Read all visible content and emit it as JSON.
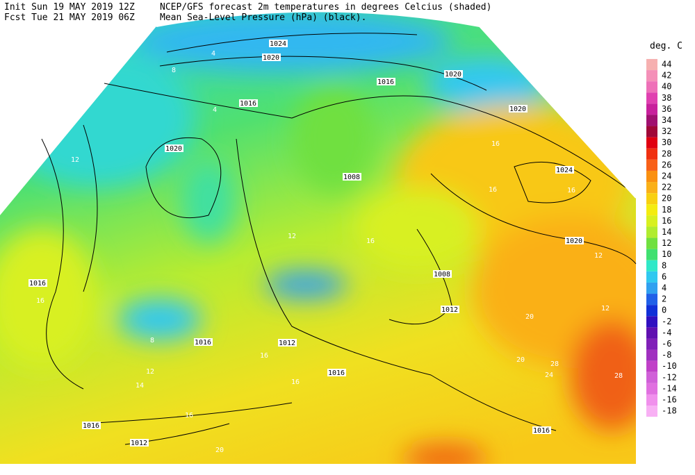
{
  "header": {
    "init": "Init  Sun 19 MAY 2019 12Z",
    "fcst": "Fcst Tue 21 MAY 2019 06Z",
    "title": "NCEP/GFS forecast 2m temperatures in degrees Celcius (shaded)",
    "subtitle": "Mean Sea-Level Pressure (hPa) (black)."
  },
  "colorbar": {
    "unit": "deg. C",
    "levels": [
      44,
      42,
      40,
      38,
      36,
      34,
      32,
      30,
      28,
      26,
      24,
      22,
      20,
      18,
      16,
      14,
      12,
      10,
      8,
      6,
      4,
      2,
      0,
      -2,
      -4,
      -6,
      -8,
      -10,
      -12,
      -14,
      -16,
      -18
    ],
    "colors": [
      "#f6b0b0",
      "#f490b8",
      "#ee70b8",
      "#e040b0",
      "#c8209c",
      "#a01070",
      "#a00838",
      "#e00010",
      "#f03010",
      "#f86018",
      "#fa9010",
      "#fab018",
      "#f8d010",
      "#f4ec10",
      "#d8f020",
      "#b0ec30",
      "#70e040",
      "#40e070",
      "#30e8c8",
      "#30c8f0",
      "#30a0f0",
      "#2060e8",
      "#1030d8",
      "#3010c0",
      "#6010b0",
      "#8020b8",
      "#a030c0",
      "#c040c8",
      "#d060d8",
      "#e070e0",
      "#f090ec",
      "#f8b0f4"
    ]
  },
  "isobar_labels": [
    "1024",
    "1020",
    "1016",
    "1020",
    "1016",
    "1020",
    "1020",
    "1024",
    "1020",
    "1008",
    "1008",
    "1012",
    "1016",
    "1016",
    "1012",
    "1016",
    "1016",
    "1012",
    "1016"
  ],
  "temperature_labels": [
    "4",
    "8",
    "12",
    "16",
    "12",
    "16",
    "20",
    "20",
    "28",
    "24",
    "28",
    "16",
    "16",
    "16",
    "20",
    "12",
    "8",
    "14",
    "16",
    "16",
    "16",
    "12",
    "12",
    "4"
  ]
}
